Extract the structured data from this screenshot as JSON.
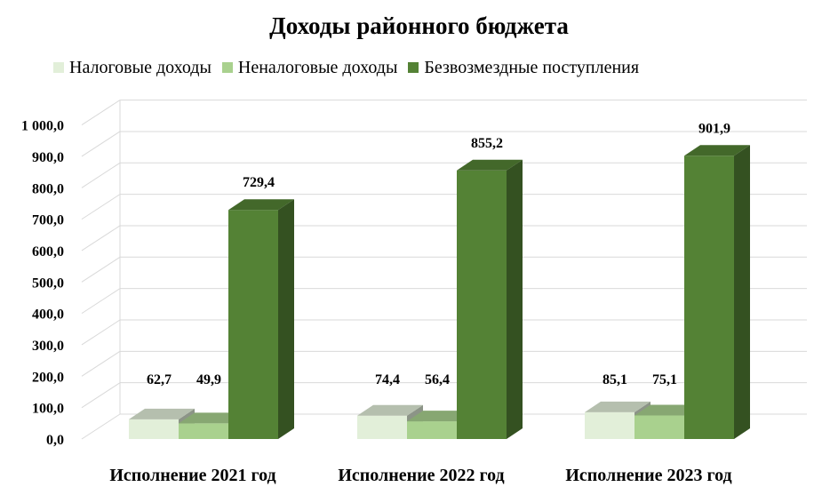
{
  "chart_data": {
    "type": "bar",
    "title": "Доходы районного бюджета",
    "categories": [
      "Исполнение 2021 год",
      "Исполнение 2022 год",
      "Исполнение 2023 год"
    ],
    "series": [
      {
        "name": "Налоговые доходы",
        "values": [
          62.7,
          74.4,
          85.1
        ],
        "labels": [
          "62,7",
          "74,4",
          "85,1"
        ],
        "color": "#e2efd9"
      },
      {
        "name": "Неналоговые доходы",
        "values": [
          49.9,
          56.4,
          75.1
        ],
        "labels": [
          "49,9",
          "56,4",
          "75,1"
        ],
        "color": "#a9d18e"
      },
      {
        "name": "Безвозмездные поступления",
        "values": [
          729.4,
          855.2,
          901.9
        ],
        "labels": [
          "729,4",
          "855,2",
          "901,9"
        ],
        "color": "#548235"
      }
    ],
    "ylim": [
      0,
      1000
    ],
    "yticks": [
      "0,0",
      "100,0",
      "200,0",
      "300,0",
      "400,0",
      "500,0",
      "600,0",
      "700,0",
      "800,0",
      "900,0",
      "1 000,0"
    ],
    "grid": true,
    "legend_position": "top",
    "xlabel": "",
    "ylabel": ""
  }
}
